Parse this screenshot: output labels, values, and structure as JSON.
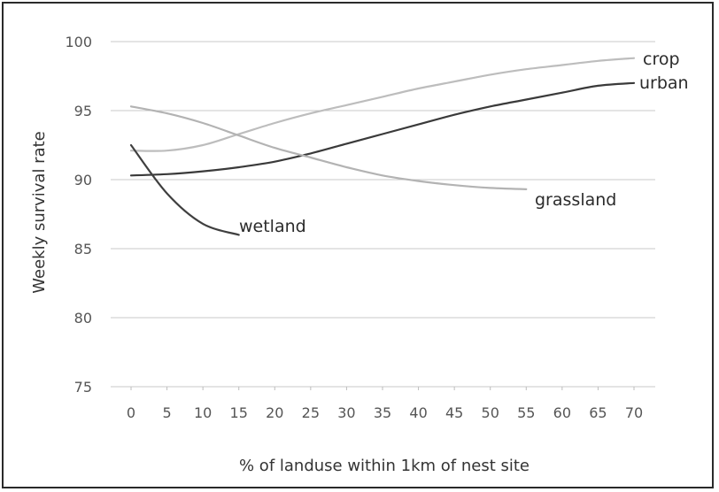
{
  "chart_data": {
    "type": "line",
    "title": "",
    "xlabel": "% of landuse within 1km of nest site",
    "ylabel": "Weekly survival rate",
    "xlim": [
      0,
      70
    ],
    "ylim": [
      75,
      100
    ],
    "x_ticks": [
      0,
      5,
      10,
      15,
      20,
      25,
      30,
      35,
      40,
      45,
      50,
      55,
      60,
      65,
      70
    ],
    "y_ticks": [
      75,
      80,
      85,
      90,
      95,
      100
    ],
    "x_tick_labels": [
      "0",
      "5",
      "10",
      "15",
      "20",
      "25",
      "30",
      "35",
      "40",
      "45",
      "50",
      "55",
      "60",
      "65",
      "70"
    ],
    "y_tick_labels": [
      "75",
      "80",
      "85",
      "90",
      "95",
      "100"
    ],
    "grid": true,
    "series": [
      {
        "name": "crop",
        "color": "#bdbdbd",
        "x": [
          0,
          5,
          10,
          15,
          20,
          25,
          30,
          35,
          40,
          45,
          50,
          55,
          60,
          65,
          70
        ],
        "y": [
          92.1,
          92.1,
          92.5,
          93.3,
          94.1,
          94.8,
          95.4,
          96.0,
          96.6,
          97.1,
          97.6,
          98.0,
          98.3,
          98.6,
          98.8
        ]
      },
      {
        "name": "urban",
        "color": "#3a3a3a",
        "x": [
          0,
          5,
          10,
          15,
          20,
          25,
          30,
          35,
          40,
          45,
          50,
          55,
          60,
          65,
          70
        ],
        "y": [
          90.3,
          90.4,
          90.6,
          90.9,
          91.3,
          91.9,
          92.6,
          93.3,
          94.0,
          94.7,
          95.3,
          95.8,
          96.3,
          96.8,
          97.0
        ]
      },
      {
        "name": "grassland",
        "color": "#b3b3b3",
        "x": [
          0,
          5,
          10,
          15,
          20,
          25,
          30,
          35,
          40,
          45,
          50,
          55
        ],
        "y": [
          95.3,
          94.8,
          94.1,
          93.2,
          92.3,
          91.6,
          90.9,
          90.3,
          89.9,
          89.6,
          89.4,
          89.3
        ]
      },
      {
        "name": "wetland",
        "color": "#3f3f3f",
        "x": [
          0,
          5,
          10,
          15
        ],
        "y": [
          92.5,
          89.0,
          86.8,
          86.0
        ]
      }
    ]
  }
}
